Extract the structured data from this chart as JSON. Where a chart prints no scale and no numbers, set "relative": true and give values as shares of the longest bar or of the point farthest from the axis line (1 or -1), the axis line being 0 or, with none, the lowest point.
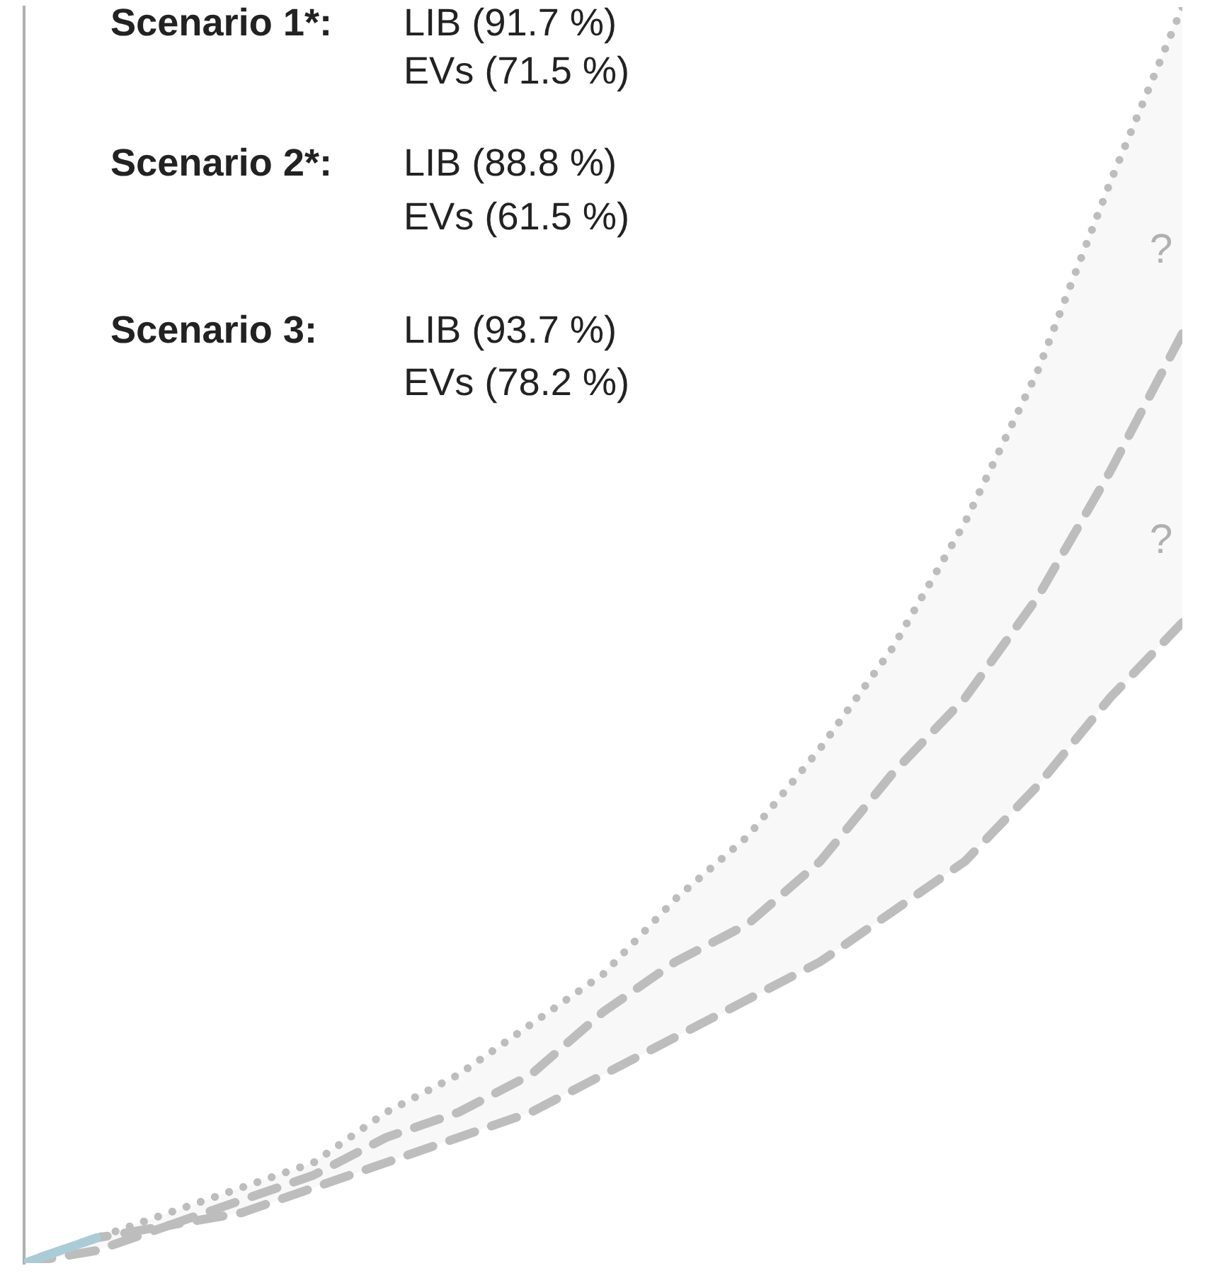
{
  "chart_data": {
    "type": "line",
    "relative": true,
    "categories": [
      null,
      null,
      null,
      null,
      null,
      null,
      null,
      null,
      null,
      null,
      null,
      null,
      null,
      null,
      null,
      null,
      null
    ],
    "series": [
      {
        "color": "#a9cdd8",
        "line_style": "solid",
        "values": [
          0,
          0.02,
          null,
          null,
          null,
          null,
          null,
          null,
          null,
          null,
          null,
          null,
          null,
          null,
          null,
          null,
          null
        ]
      },
      {
        "color": "#bdbdbd",
        "line_style": "dotted",
        "values": [
          0,
          0.02,
          0.04,
          0.06,
          0.08,
          0.12,
          0.15,
          0.19,
          0.23,
          0.29,
          0.34,
          0.41,
          0.49,
          0.59,
          0.71,
          0.86,
          1.0
        ]
      },
      {
        "color": "#bdbdbd",
        "line_style": "dashed",
        "values": [
          0,
          0.02,
          0.03,
          0.05,
          0.07,
          0.1,
          0.12,
          0.15,
          0.2,
          0.24,
          0.27,
          0.32,
          0.39,
          0.45,
          0.53,
          0.63,
          0.74
        ],
        "lower": [
          0,
          0.01,
          0.03,
          0.04,
          0.06,
          0.08,
          0.1,
          0.12,
          0.15,
          0.18,
          0.21,
          0.24,
          0.28,
          0.32,
          0.38,
          0.45,
          0.51
        ],
        "upper": [
          0,
          0.02,
          0.04,
          0.06,
          0.08,
          0.12,
          0.15,
          0.19,
          0.23,
          0.29,
          0.34,
          0.41,
          0.49,
          0.59,
          0.71,
          0.86,
          1.0
        ]
      },
      {
        "color": "#bdbdbd",
        "line_style": "dashed",
        "values": [
          0,
          0.01,
          0.03,
          0.04,
          0.06,
          0.08,
          0.1,
          0.12,
          0.15,
          0.18,
          0.21,
          0.24,
          0.28,
          0.32,
          0.38,
          0.45,
          0.51
        ]
      }
    ],
    "annotations": [
      "Scenario 1*:",
      "LIB (91.7 %)",
      "EVs (71.5 %)",
      "Scenario 2*:",
      "LIB (88.8 %)",
      "EVs (61.5 %)",
      "Scenario 3:",
      "LIB (93.7 %)",
      "EVs (78.2 %)",
      "?",
      "?"
    ]
  }
}
